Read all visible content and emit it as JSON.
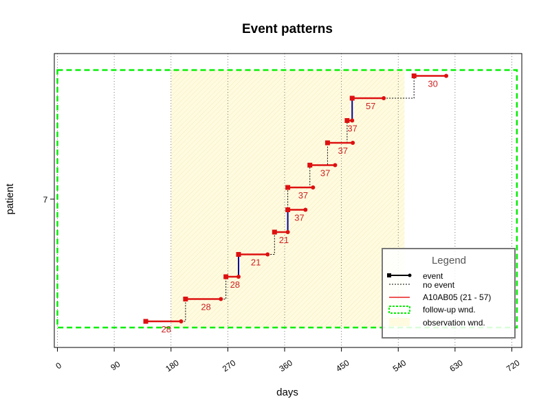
{
  "chart_data": {
    "type": "event-patterns",
    "title": "Event patterns",
    "xlabel": "days",
    "ylabel": "patient",
    "patient_label": "7",
    "xlim": [
      0,
      720
    ],
    "x_ticks": [
      0,
      90,
      180,
      270,
      360,
      450,
      540,
      630,
      720
    ],
    "follow_up_window": [
      0,
      728
    ],
    "observation_window": [
      180,
      550
    ],
    "events": [
      {
        "start": 140,
        "duration": 56,
        "label": "28",
        "connector": "none"
      },
      {
        "start": 203,
        "duration": 56,
        "label": "28",
        "connector": "dotted"
      },
      {
        "start": 267,
        "duration": 20,
        "label": "28",
        "connector": "dotted"
      },
      {
        "start": 287,
        "duration": 46,
        "label": "21",
        "connector": "solid"
      },
      {
        "start": 344,
        "duration": 21,
        "label": "21",
        "connector": "dotted"
      },
      {
        "start": 365,
        "duration": 28,
        "label": "37",
        "connector": "solid"
      },
      {
        "start": 365,
        "duration": 40,
        "label": "37",
        "connector": "dotted"
      },
      {
        "start": 400,
        "duration": 40,
        "label": "37",
        "connector": "dotted"
      },
      {
        "start": 428,
        "duration": 40,
        "label": "37",
        "connector": "dotted"
      },
      {
        "start": 459,
        "duration": 8,
        "label": "37",
        "connector": "dotted"
      },
      {
        "start": 467,
        "duration": 50,
        "label": "57",
        "connector": "solid"
      },
      {
        "start": 565,
        "duration": 51,
        "label": "30",
        "connector": "dotted"
      }
    ],
    "legend": {
      "title": "Legend",
      "placement": "bottom-right",
      "items": [
        "event",
        "no event",
        "A10AB05 (21 - 57)",
        "follow-up wnd.",
        "observation wnd."
      ]
    },
    "colors": {
      "event": "#dd1111",
      "connector_solid": "#000099",
      "follow_up": "#00ee00",
      "observation_fill": "#fffbe0",
      "grid": "#555555"
    }
  }
}
